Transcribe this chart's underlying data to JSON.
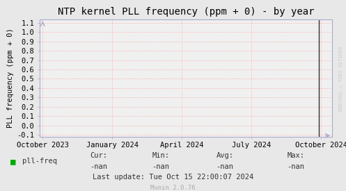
{
  "title": "NTP kernel PLL frequency (ppm + 0) - by year",
  "ylabel": "PLL frequency (ppm + 0)",
  "bg_color": "#e8e8e8",
  "plot_bg_color": "#f0f0f0",
  "grid_color": "#ffaaaa",
  "yticks": [
    -0.1,
    0.0,
    0.1,
    0.2,
    0.3,
    0.4,
    0.5,
    0.6,
    0.7,
    0.8,
    0.9,
    1.0,
    1.1
  ],
  "ylim": [
    -0.12,
    1.14
  ],
  "xtick_labels": [
    "October 2023",
    "January 2024",
    "April 2024",
    "July 2024",
    "October 2024"
  ],
  "xtick_positions": [
    0.0,
    0.25,
    0.5,
    0.75,
    1.0
  ],
  "vline_x": 0.992,
  "vline_color": "#333333",
  "title_fontsize": 10,
  "axis_label_fontsize": 7.5,
  "tick_fontsize": 7.5,
  "legend_label": "pll-freq",
  "legend_color": "#00aa00",
  "cur_val": "-nan",
  "min_val": "-nan",
  "avg_val": "-nan",
  "max_val": "-nan",
  "last_update": "Last update: Tue Oct 15 22:00:07 2024",
  "munin_label": "Munin 2.0.76",
  "watermark": "RRDTOOL / TOBI OETIKER",
  "arrow_color": "#aaaacc",
  "spine_color": "#aaaacc"
}
